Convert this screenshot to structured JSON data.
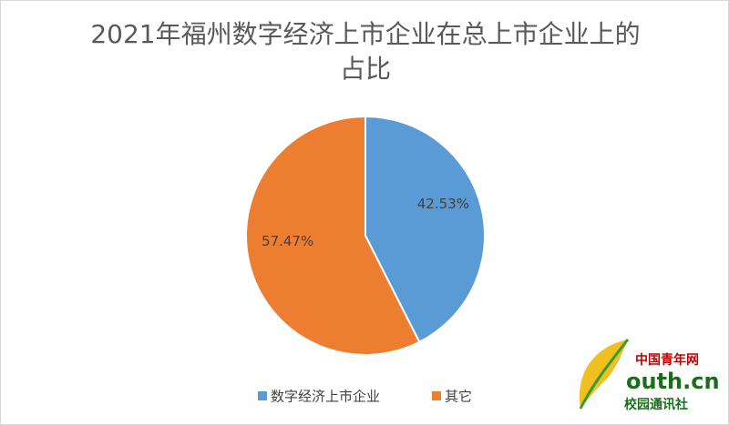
{
  "chart_data": {
    "type": "pie",
    "title": "2021年福州数字经济上市企业在总上市企业上的占比",
    "categories": [
      "数字经济上市企业",
      "其它"
    ],
    "values": [
      42.53,
      57.47
    ],
    "value_labels": [
      "42.53%",
      "57.47%"
    ],
    "colors": [
      "#5b9bd5",
      "#ed7d31"
    ],
    "legend": "bottom"
  },
  "watermark": {
    "site": "中国青年网",
    "domain": "outh.cn",
    "section": "校园通讯社"
  }
}
